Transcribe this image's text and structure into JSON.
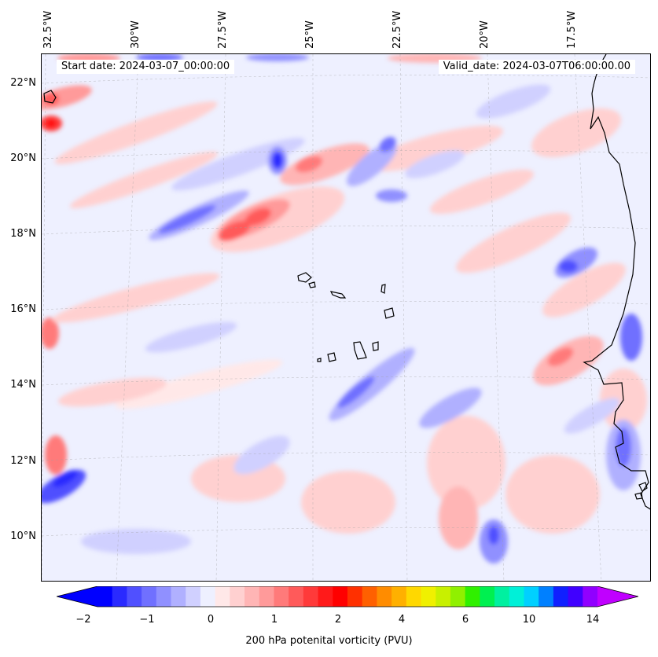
{
  "map": {
    "start_date": "Start date: 2024-03-07_00:00:00",
    "valid_date": "Valid_date: 2024-03-07T06:00:00.00",
    "lon_labels": [
      "32.5°W",
      "30°W",
      "27.5°W",
      "25°W",
      "22.5°W",
      "20°W",
      "17.5°W"
    ],
    "lat_labels": [
      "22°N",
      "20°N",
      "18°N",
      "16°N",
      "14°N",
      "12°N",
      "10°N"
    ],
    "projection": "lambert-conformal",
    "gridlines": true,
    "coastline_color": "#000000"
  },
  "colorbar": {
    "label": "200 hPa potenital vorticity (PVU)",
    "tick_labels": [
      "−2",
      "−1",
      "0",
      "1",
      "2",
      "4",
      "6",
      "10",
      "14"
    ],
    "extend": "both",
    "colors": [
      "#0000ff",
      "#2a2aff",
      "#5050ff",
      "#7070ff",
      "#9090ff",
      "#b0b0ff",
      "#d0d0ff",
      "#eef0ff",
      "#ffe8e8",
      "#ffd0d0",
      "#ffb5b5",
      "#ff9a9a",
      "#ff7a7a",
      "#ff5a5a",
      "#ff3a3a",
      "#ff1a1a",
      "#ff0000",
      "#ff3000",
      "#ff6000",
      "#ff8c00",
      "#ffb000",
      "#ffd800",
      "#f0f000",
      "#c8f000",
      "#90f000",
      "#30f000",
      "#00f050",
      "#00f0a0",
      "#00f0d8",
      "#00d0ff",
      "#0080ff",
      "#1020ff",
      "#4000ff",
      "#9000ff"
    ],
    "under_color": "#0000ff",
    "over_color": "#c000ff"
  }
}
